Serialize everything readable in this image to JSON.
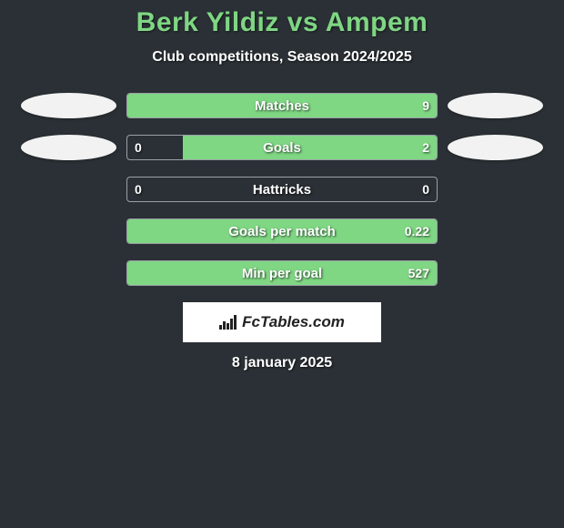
{
  "title": "Berk Yildiz vs Ampem",
  "subtitle": "Club competitions, Season 2024/2025",
  "date": "8 january 2025",
  "logo_text": "FcTables.com",
  "colors": {
    "background": "#2a3035",
    "accent": "#7fd683",
    "bar_border": "#9aa0a6",
    "ellipse": "#f2f2f2",
    "text": "#ffffff",
    "logo_bg": "#ffffff",
    "logo_text": "#222222"
  },
  "rows": [
    {
      "label": "Matches",
      "left_val": "",
      "right_val": "9",
      "left_pct": 0,
      "right_pct": 100,
      "show_left_ellipse": true,
      "show_right_ellipse": true
    },
    {
      "label": "Goals",
      "left_val": "0",
      "right_val": "2",
      "left_pct": 0,
      "right_pct": 82,
      "show_left_ellipse": true,
      "show_right_ellipse": true
    },
    {
      "label": "Hattricks",
      "left_val": "0",
      "right_val": "0",
      "left_pct": 0,
      "right_pct": 0,
      "show_left_ellipse": false,
      "show_right_ellipse": false
    },
    {
      "label": "Goals per match",
      "left_val": "",
      "right_val": "0.22",
      "left_pct": 0,
      "right_pct": 100,
      "show_left_ellipse": false,
      "show_right_ellipse": false
    },
    {
      "label": "Min per goal",
      "left_val": "",
      "right_val": "527",
      "left_pct": 0,
      "right_pct": 100,
      "show_left_ellipse": false,
      "show_right_ellipse": false
    }
  ]
}
